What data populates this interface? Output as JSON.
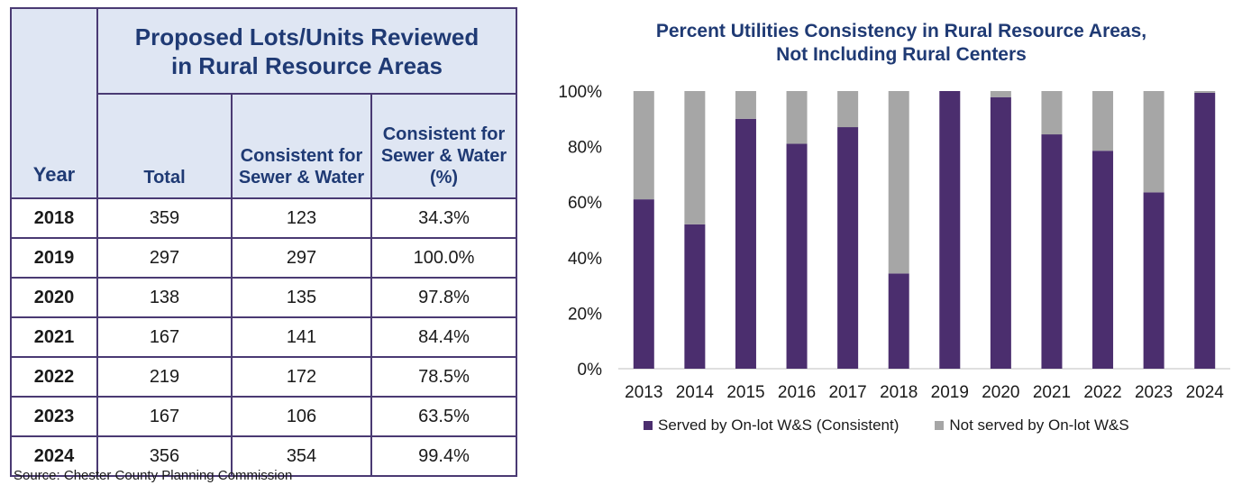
{
  "table": {
    "title": "Proposed Lots/Units Reviewed in Rural Resource Areas",
    "headers": {
      "year": "Year",
      "total": "Total",
      "consistent": "Consistent for Sewer & Water",
      "consistent_pct": "Consistent for Sewer & Water (%)"
    },
    "rows": [
      {
        "year": "2018",
        "total": "359",
        "consistent": "123",
        "pct": "34.3%"
      },
      {
        "year": "2019",
        "total": "297",
        "consistent": "297",
        "pct": "100.0%"
      },
      {
        "year": "2020",
        "total": "138",
        "consistent": "135",
        "pct": "97.8%"
      },
      {
        "year": "2021",
        "total": "167",
        "consistent": "141",
        "pct": "84.4%"
      },
      {
        "year": "2022",
        "total": "219",
        "consistent": "172",
        "pct": "78.5%"
      },
      {
        "year": "2023",
        "total": "167",
        "consistent": "106",
        "pct": "63.5%"
      },
      {
        "year": "2024",
        "total": "356",
        "consistent": "354",
        "pct": "99.4%"
      }
    ],
    "source": "Source: Chester County Planning Commission"
  },
  "chart_data": {
    "type": "bar",
    "stacked": true,
    "title": "Percent Utilities Consistency in Rural Resource Areas, Not Including Rural Centers",
    "categories": [
      "2013",
      "2014",
      "2015",
      "2016",
      "2017",
      "2018",
      "2019",
      "2020",
      "2021",
      "2022",
      "2023",
      "2024"
    ],
    "series": [
      {
        "name": "Served by On-lot W&S (Consistent)",
        "color": "#4b2e6e",
        "values": [
          61,
          52,
          90,
          81,
          87,
          34.3,
          100,
          97.8,
          84.4,
          78.5,
          63.5,
          99.4
        ]
      },
      {
        "name": "Not served by On-lot W&S",
        "color": "#a6a6a6",
        "values": [
          39,
          48,
          10,
          19,
          13,
          65.7,
          0,
          2.2,
          15.6,
          21.5,
          36.5,
          0.6
        ]
      }
    ],
    "ylim": [
      0,
      100
    ],
    "yticks": [
      "0%",
      "20%",
      "40%",
      "60%",
      "80%",
      "100%"
    ],
    "legend": "bottom"
  }
}
